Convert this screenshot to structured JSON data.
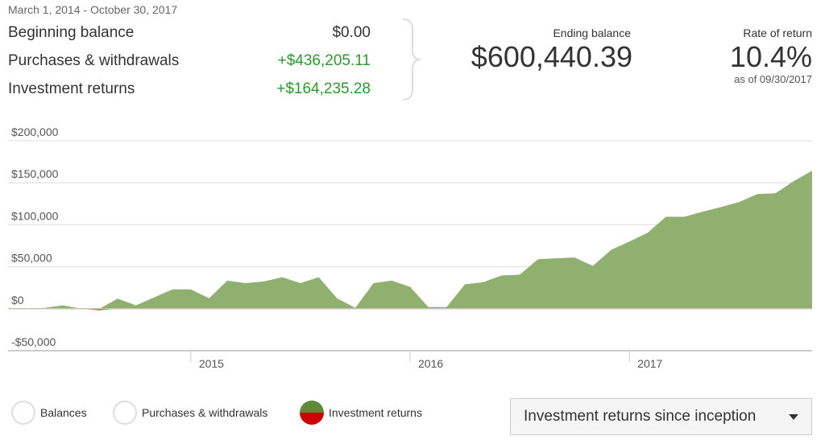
{
  "summary": {
    "date_range": "March 1, 2014 - October 30, 2017",
    "rows": [
      {
        "label": "Beginning balance",
        "value": "$0.00"
      },
      {
        "label": "Purchases & withdrawals",
        "value": "+$436,205.11"
      },
      {
        "label": "Investment returns",
        "value": "+$164,235.28"
      }
    ],
    "ending_balance_label": "Ending balance",
    "ending_balance": "$600,440.39",
    "rate_of_return_label": "Rate of return",
    "rate_of_return": "10.4%",
    "as_of": "as of 09/30/2017"
  },
  "colors": {
    "positive": "#8fb06e",
    "negative": "#e84a4a",
    "accent_green": "#2a9a2a"
  },
  "legend": [
    {
      "label": "Balances",
      "selected": false
    },
    {
      "label": "Purchases & withdrawals",
      "selected": false
    },
    {
      "label": "Investment returns",
      "selected": true
    }
  ],
  "dropdown": {
    "value": "Investment returns since inception"
  },
  "chart_data": {
    "type": "area",
    "ylim": [
      -50000,
      200000
    ],
    "y_ticks": [
      200000,
      150000,
      100000,
      50000,
      0,
      -50000
    ],
    "y_tick_labels": [
      "$200,000",
      "$150,000",
      "$100,000",
      "$50,000",
      "$0",
      "-$50,000"
    ],
    "x_tick_labels": [
      "2015",
      "2016",
      "2017"
    ],
    "x_start": "2014-03",
    "x_end": "2017-10",
    "grid": true,
    "series": [
      {
        "values": [
          0,
          0,
          1000,
          4000,
          0,
          -2000,
          12000,
          4000,
          13500,
          23000,
          23000,
          12500,
          33500,
          30500,
          32500,
          37500,
          30500,
          37500,
          12500,
          1000,
          30500,
          33500,
          26000,
          2000,
          2000,
          29000,
          31500,
          39500,
          40500,
          59000,
          60000,
          61000,
          51000,
          70000,
          80000,
          90500,
          109500,
          109500,
          115500,
          121000,
          127000,
          136500,
          137500,
          152000,
          164235
        ]
      }
    ]
  }
}
